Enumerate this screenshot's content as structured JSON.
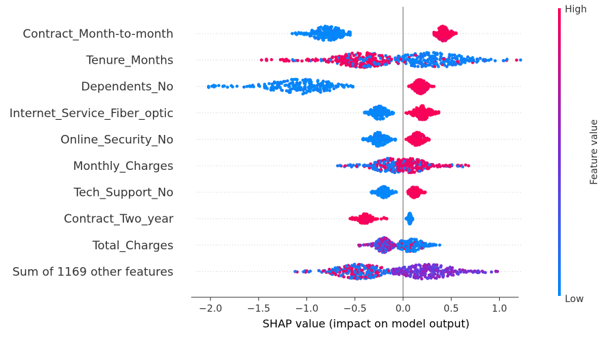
{
  "chart_data": {
    "type": "beeswarm",
    "title": "",
    "xlabel": "SHAP value (impact on model output)",
    "xlim": [
      -2.2,
      1.2
    ],
    "xticks": [
      -2.0,
      -1.5,
      -1.0,
      -0.5,
      0.0,
      0.5,
      1.0
    ],
    "xtick_labels": [
      "−2.0",
      "−1.5",
      "−1.0",
      "−0.5",
      "0.0",
      "0.5",
      "1.0"
    ],
    "colorbar": {
      "label": "Feature value",
      "high_label": "High",
      "low_label": "Low",
      "high_color": "#ff0052",
      "low_color": "#008bfb"
    },
    "features": [
      {
        "name": "Contract_Month-to-month",
        "clusters": [
          {
            "center": -0.78,
            "min": -1.15,
            "max": -0.55,
            "width": 0.24,
            "color_value": 0.02,
            "mix": 0.0,
            "density": 1.0
          },
          {
            "center": 0.42,
            "min": 0.32,
            "max": 0.55,
            "width": 0.1,
            "color_value": 0.98,
            "mix": 0.0,
            "density": 0.9
          }
        ]
      },
      {
        "name": "Tenure_Months",
        "clusters": [
          {
            "center": -0.42,
            "min": -1.47,
            "max": 0.0,
            "width": 0.42,
            "color_value": 0.95,
            "mix": 0.25,
            "density": 1.3
          },
          {
            "center": 0.3,
            "min": -0.05,
            "max": 1.22,
            "width": 0.55,
            "color_value": 0.05,
            "mix": 0.1,
            "density": 1.1
          }
        ]
      },
      {
        "name": "Dependents_No",
        "clusters": [
          {
            "center": -1.05,
            "min": -2.02,
            "max": -0.52,
            "width": 0.5,
            "color_value": 0.02,
            "mix": 0.0,
            "density": 1.0
          },
          {
            "center": 0.18,
            "min": 0.06,
            "max": 0.32,
            "width": 0.1,
            "color_value": 0.98,
            "mix": 0.0,
            "density": 0.9
          }
        ]
      },
      {
        "name": "Internet_Service_Fiber_optic",
        "clusters": [
          {
            "center": -0.25,
            "min": -0.4,
            "max": -0.1,
            "width": 0.12,
            "color_value": 0.02,
            "mix": 0.0,
            "density": 0.8
          },
          {
            "center": 0.2,
            "min": 0.03,
            "max": 0.37,
            "width": 0.13,
            "color_value": 0.98,
            "mix": 0.0,
            "density": 0.8
          }
        ]
      },
      {
        "name": "Online_Security_No",
        "clusters": [
          {
            "center": -0.25,
            "min": -0.42,
            "max": -0.08,
            "width": 0.12,
            "color_value": 0.02,
            "mix": 0.0,
            "density": 0.8
          },
          {
            "center": 0.15,
            "min": 0.03,
            "max": 0.27,
            "width": 0.1,
            "color_value": 0.98,
            "mix": 0.0,
            "density": 0.8
          }
        ]
      },
      {
        "name": "Monthly_Charges",
        "clusters": [
          {
            "center": -0.12,
            "min": -0.68,
            "max": 0.0,
            "width": 0.28,
            "color_value": 0.1,
            "mix": 0.35,
            "density": 0.9
          },
          {
            "center": 0.05,
            "min": -0.05,
            "max": 0.68,
            "width": 0.3,
            "color_value": 0.92,
            "mix": 0.2,
            "density": 1.0
          }
        ]
      },
      {
        "name": "Tech_Support_No",
        "clusters": [
          {
            "center": -0.2,
            "min": -0.33,
            "max": -0.07,
            "width": 0.1,
            "color_value": 0.02,
            "mix": 0.0,
            "density": 0.6
          },
          {
            "center": 0.12,
            "min": 0.05,
            "max": 0.23,
            "width": 0.08,
            "color_value": 0.98,
            "mix": 0.0,
            "density": 0.6
          }
        ]
      },
      {
        "name": "Contract_Two_year",
        "clusters": [
          {
            "center": -0.4,
            "min": -0.55,
            "max": -0.17,
            "width": 0.12,
            "color_value": 0.98,
            "mix": 0.0,
            "density": 0.5
          },
          {
            "center": 0.07,
            "min": 0.03,
            "max": 0.1,
            "width": 0.02,
            "color_value": 0.02,
            "mix": 0.0,
            "density": 0.6
          }
        ]
      },
      {
        "name": "Total_Charges",
        "clusters": [
          {
            "center": -0.2,
            "min": -0.46,
            "max": -0.02,
            "width": 0.12,
            "color_value": 0.75,
            "mix": 0.5,
            "density": 0.9
          },
          {
            "center": 0.08,
            "min": -0.05,
            "max": 0.38,
            "width": 0.18,
            "color_value": 0.05,
            "mix": 0.15,
            "density": 0.8
          }
        ]
      },
      {
        "name": "Sum of 1169 other features",
        "clusters": [
          {
            "center": -0.45,
            "min": -1.12,
            "max": 0.05,
            "width": 0.38,
            "color_value": 0.1,
            "mix": 0.45,
            "density": 1.3
          },
          {
            "center": 0.25,
            "min": -0.1,
            "max": 0.98,
            "width": 0.42,
            "color_value": 0.6,
            "mix": 0.55,
            "density": 1.2
          }
        ]
      }
    ]
  }
}
